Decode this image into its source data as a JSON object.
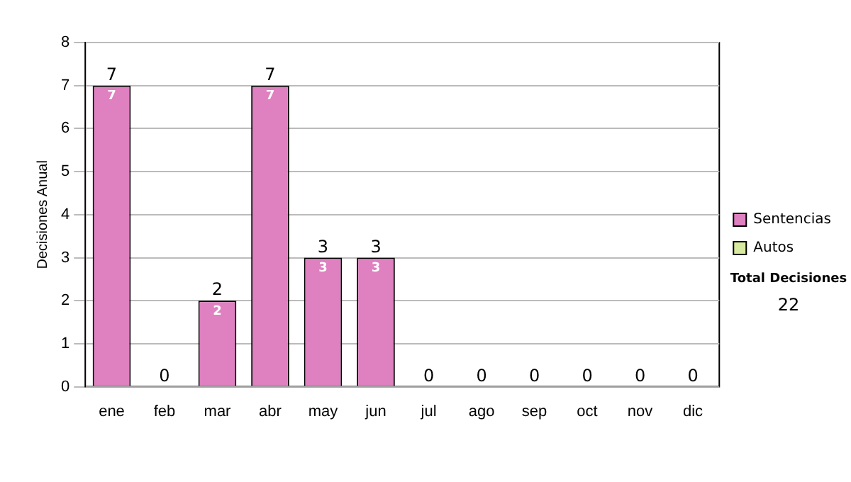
{
  "chart_data": {
    "type": "bar",
    "stacked": true,
    "ylabel": "Decisiones Anual",
    "categories": [
      "ene",
      "feb",
      "mar",
      "abr",
      "may",
      "jun",
      "jul",
      "ago",
      "sep",
      "oct",
      "nov",
      "dic"
    ],
    "series": [
      {
        "name": "Sentencias",
        "color": "#df80c0",
        "values": [
          7,
          0,
          2,
          7,
          3,
          3,
          0,
          0,
          0,
          0,
          0,
          0
        ],
        "value_labels": [
          "7",
          null,
          "2",
          "7",
          "3",
          "3",
          null,
          null,
          null,
          null,
          null,
          null
        ]
      },
      {
        "name": "Autos",
        "color": "#d8eaa0",
        "values": [
          0,
          0,
          0,
          0,
          0,
          0,
          0,
          0,
          0,
          0,
          0,
          0
        ]
      }
    ],
    "totals": [
      "7",
      "0",
      "2",
      "7",
      "3",
      "3",
      "0",
      "0",
      "0",
      "0",
      "0",
      "0"
    ],
    "ylim": [
      0,
      8
    ],
    "yticks": [
      0,
      1,
      2,
      3,
      4,
      5,
      6,
      7,
      8
    ],
    "grid": "y",
    "legend": "right",
    "annotations": [
      "Total Decisiones",
      "22"
    ]
  }
}
